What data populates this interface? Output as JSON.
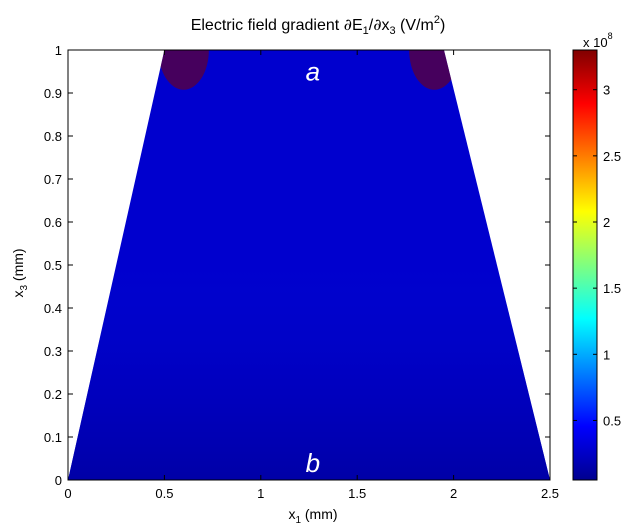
{
  "chart_data": {
    "type": "heatmap",
    "title": {
      "prefix": "Electric field gradient ",
      "partial1": "∂",
      "e": "E",
      "e_sub": "1",
      "slash": "/",
      "partial2": "∂",
      "x": "x",
      "x_sub": "3",
      "units_open": " (V/m",
      "units_sup": "2",
      "units_close": ")"
    },
    "xlabel": {
      "base": "x",
      "sub": "1",
      "rest": " (mm)"
    },
    "ylabel": {
      "base": "x",
      "sub": "3",
      "rest": " (mm)"
    },
    "xlim": [
      0,
      2.5
    ],
    "ylim": [
      0,
      1
    ],
    "x_ticks": [
      {
        "value": 0,
        "label": "0"
      },
      {
        "value": 0.5,
        "label": "0.5"
      },
      {
        "value": 1,
        "label": "1"
      },
      {
        "value": 1.5,
        "label": "1.5"
      },
      {
        "value": 2,
        "label": "2"
      },
      {
        "value": 2.5,
        "label": "2.5"
      }
    ],
    "y_ticks": [
      {
        "value": 0,
        "label": "0"
      },
      {
        "value": 0.1,
        "label": "0.1"
      },
      {
        "value": 0.2,
        "label": "0.2"
      },
      {
        "value": 0.3,
        "label": "0.3"
      },
      {
        "value": 0.4,
        "label": "0.4"
      },
      {
        "value": 0.5,
        "label": "0.5"
      },
      {
        "value": 0.6,
        "label": "0.6"
      },
      {
        "value": 0.7,
        "label": "0.7"
      },
      {
        "value": 0.8,
        "label": "0.8"
      },
      {
        "value": 0.9,
        "label": "0.9"
      },
      {
        "value": 1,
        "label": "1"
      }
    ],
    "domain": {
      "description_shape": "trapezoid",
      "bottom_x": [
        0,
        2.5
      ],
      "top_x": [
        0.5,
        1.95
      ]
    },
    "colorbar": {
      "colormap": "jet",
      "range": [
        0.05,
        3.3
      ],
      "multiplier": {
        "base": "x 10",
        "exp": "8"
      },
      "ticks": [
        {
          "value": 0.5,
          "label": "0.5"
        },
        {
          "value": 1,
          "label": "1"
        },
        {
          "value": 1.5,
          "label": "1.5"
        },
        {
          "value": 2,
          "label": "2"
        },
        {
          "value": 2.5,
          "label": "2.5"
        },
        {
          "value": 3,
          "label": "3"
        }
      ]
    },
    "annotations": [
      {
        "text": "a",
        "x": 1.27,
        "y": 0.95
      },
      {
        "text": "b",
        "x": 1.27,
        "y": 0.04
      }
    ],
    "hotspots": [
      {
        "x": 0.6,
        "y": 1.0,
        "peak_value": 3.3
      },
      {
        "x": 1.9,
        "y": 1.0,
        "peak_value": 3.3
      }
    ],
    "background_level": 0.3,
    "grid": false
  }
}
